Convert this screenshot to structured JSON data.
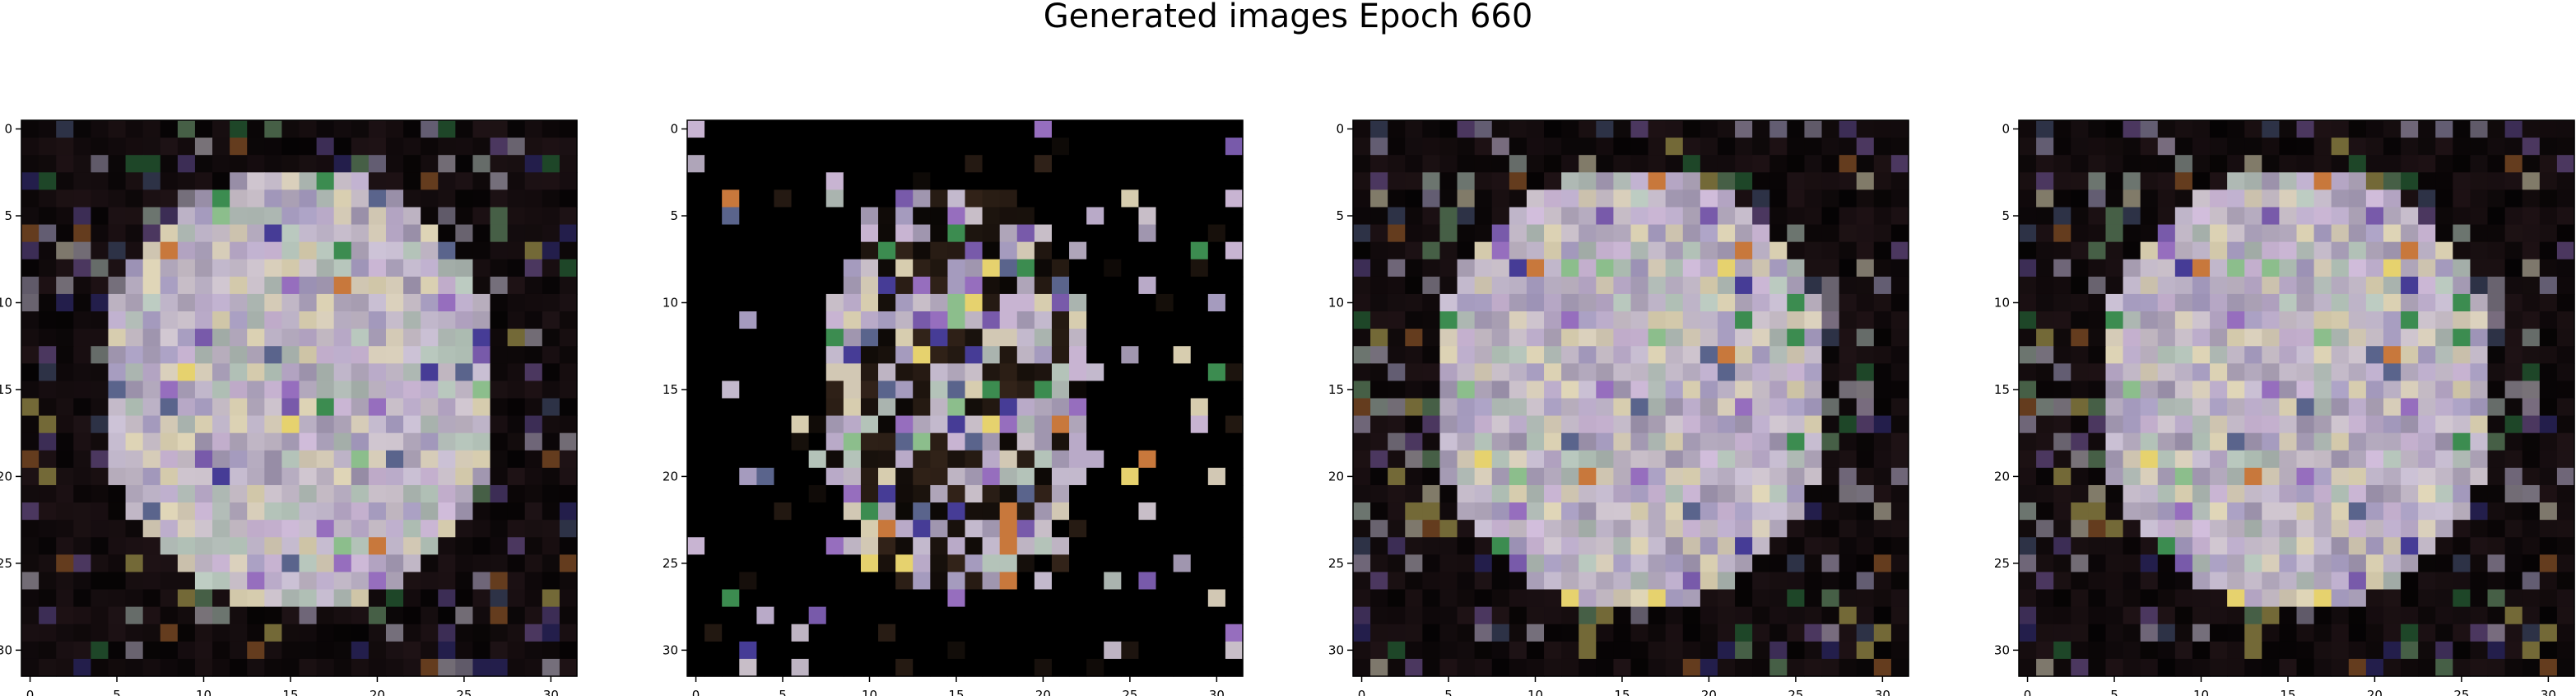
{
  "title": "Generated images Epoch 660",
  "chart_data": [
    {
      "type": "heatmap",
      "x_ticks": [
        0,
        5,
        10,
        15,
        20,
        25,
        30
      ],
      "y_ticks": [
        0,
        5,
        10,
        15,
        20,
        25,
        30
      ],
      "xlim": [
        -0.5,
        31.5
      ],
      "ylim": [
        31.5,
        -0.5
      ],
      "grid": false
    },
    {
      "type": "heatmap",
      "x_ticks": [
        0,
        5,
        10,
        15,
        20,
        25,
        30
      ],
      "y_ticks": [
        0,
        5,
        10,
        15,
        20,
        25,
        30
      ],
      "xlim": [
        -0.5,
        31.5
      ],
      "ylim": [
        31.5,
        -0.5
      ],
      "grid": false
    },
    {
      "type": "heatmap",
      "x_ticks": [
        0,
        5,
        10,
        15,
        20,
        25,
        30
      ],
      "y_ticks": [
        0,
        5,
        10,
        15,
        20,
        25,
        30
      ],
      "xlim": [
        -0.5,
        31.5
      ],
      "ylim": [
        31.5,
        -0.5
      ],
      "grid": false
    },
    {
      "type": "heatmap",
      "x_ticks": [
        0,
        5,
        10,
        15,
        20,
        25,
        30
      ],
      "y_ticks": [
        0,
        5,
        10,
        15,
        20,
        25,
        30
      ],
      "xlim": [
        -0.5,
        31.5
      ],
      "ylim": [
        31.5,
        -0.5
      ],
      "grid": false
    }
  ]
}
